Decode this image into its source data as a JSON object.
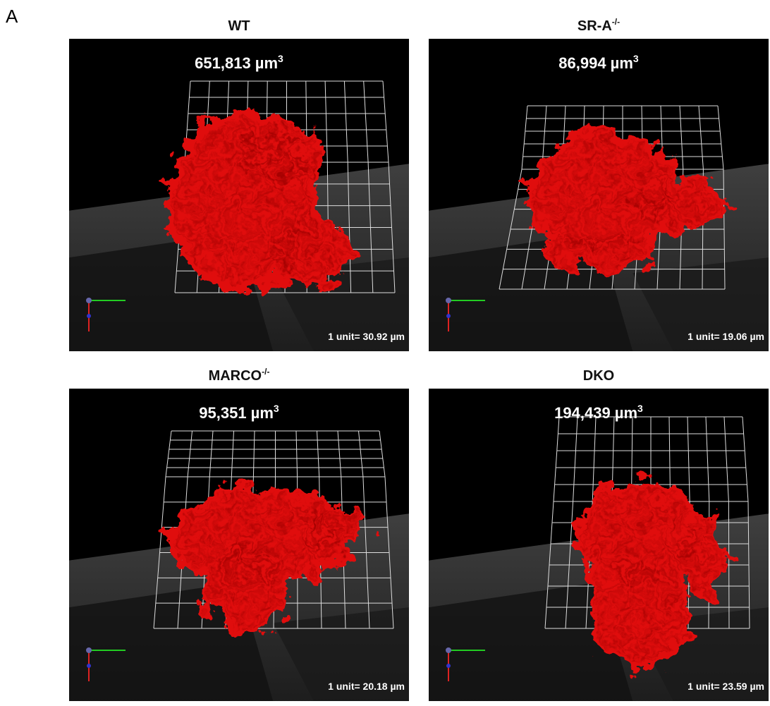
{
  "figure_label": "A",
  "panels": [
    {
      "title": {
        "text": "WT",
        "sup": ""
      },
      "volume": {
        "text": "651,813 µm",
        "sup": "3"
      },
      "scale": "1 unit= 30.92 µm"
    },
    {
      "title": {
        "text": "SR-A",
        "sup": "-/-"
      },
      "volume": {
        "text": "86,994 µm",
        "sup": "3"
      },
      "scale": "1 unit= 19.06 µm"
    },
    {
      "title": {
        "text": "MARCO",
        "sup": "-/-"
      },
      "volume": {
        "text": "95,351 µm",
        "sup": "3"
      },
      "scale": "1 unit= 20.18 µm"
    },
    {
      "title": {
        "text": "DKO",
        "sup": ""
      },
      "volume": {
        "text": "194,439 µm",
        "sup": "3"
      },
      "scale": "1 unit= 23.59 µm"
    }
  ]
}
